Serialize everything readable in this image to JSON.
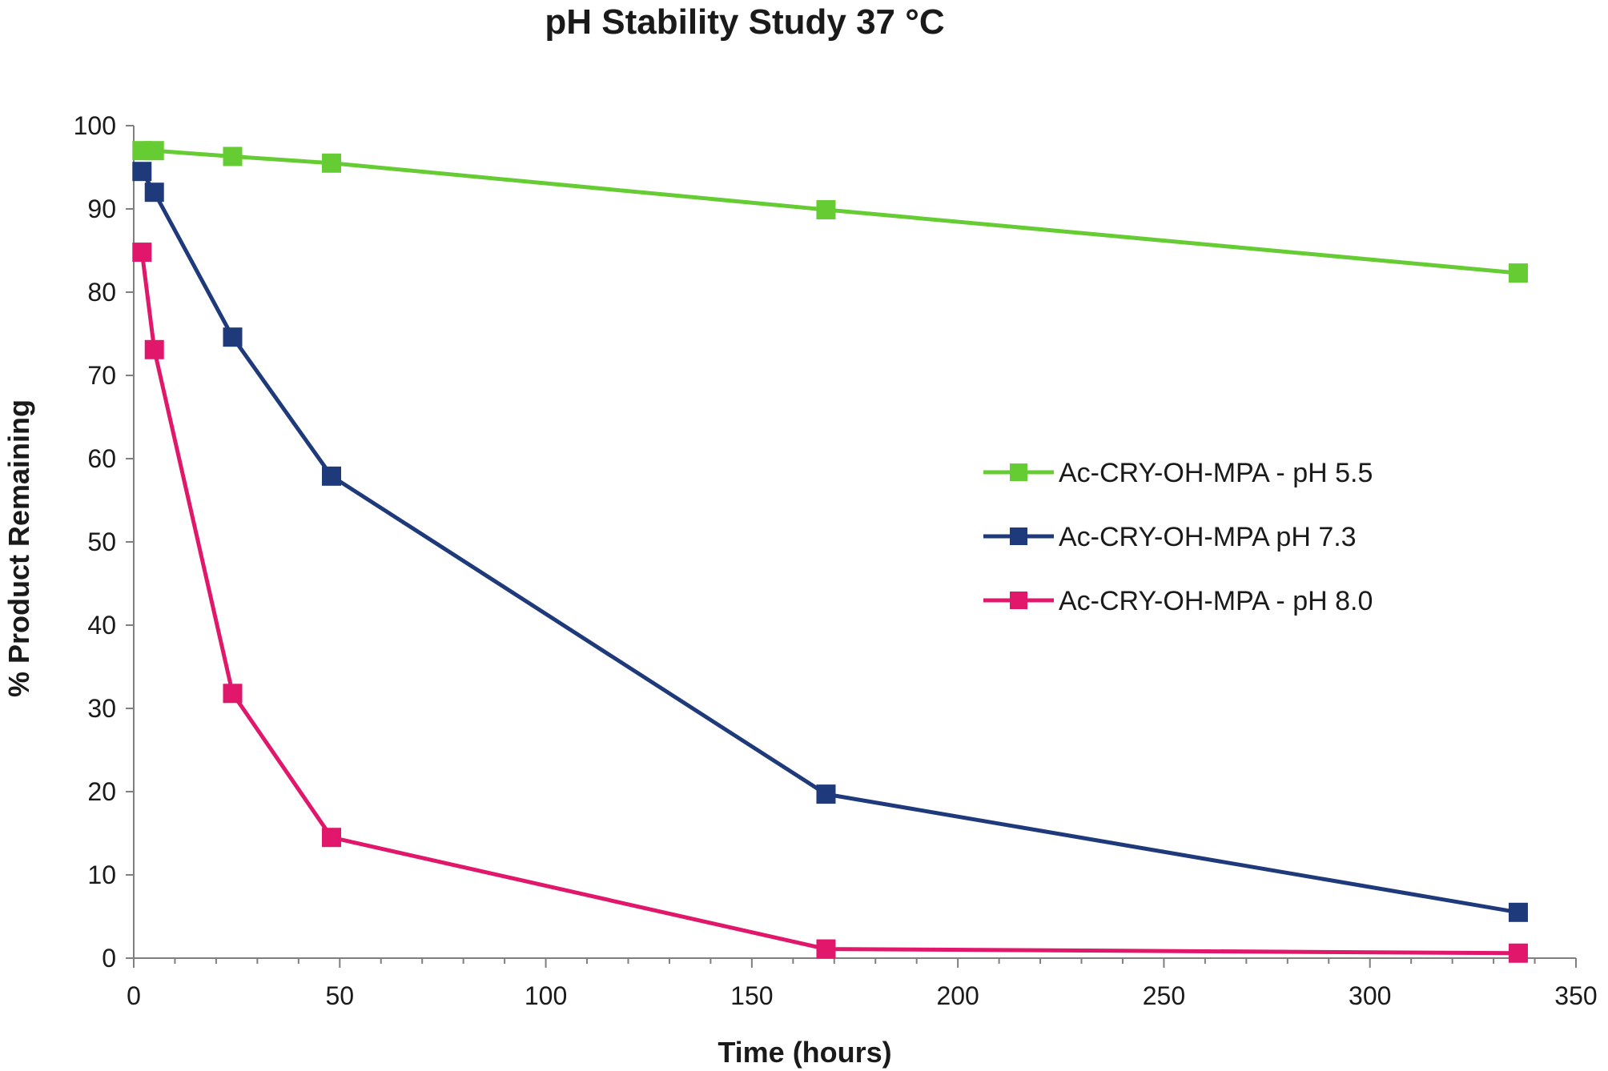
{
  "chart_data": {
    "type": "line",
    "title": "pH Stability Study 37 °C",
    "xlabel": "Time (hours)",
    "ylabel": "% Product Remaining",
    "xlim": [
      0,
      350
    ],
    "ylim": [
      0,
      100
    ],
    "xticks": [
      0,
      50,
      100,
      150,
      200,
      250,
      300,
      350
    ],
    "yticks": [
      0,
      10,
      20,
      30,
      40,
      50,
      60,
      70,
      80,
      90,
      100
    ],
    "grid": false,
    "legend_position": "right",
    "series": [
      {
        "name": "Ac-CRY-OH-MPA - pH 5.5",
        "color": "#66cc33",
        "x": [
          2,
          5,
          24,
          48,
          168,
          336
        ],
        "y": [
          97,
          97,
          96.3,
          95.5,
          89.9,
          82.3
        ]
      },
      {
        "name": "Ac-CRY-OH-MPA pH 7.3",
        "color": "#1f3a7a",
        "x": [
          2,
          5,
          24,
          48,
          168,
          336
        ],
        "y": [
          94.5,
          92,
          74.6,
          57.9,
          19.7,
          5.5
        ]
      },
      {
        "name": "Ac-CRY-OH-MPA - pH 8.0",
        "color": "#e0176b",
        "x": [
          2,
          5,
          24,
          48,
          168,
          336
        ],
        "y": [
          84.8,
          73.1,
          31.8,
          14.5,
          1.1,
          0.6
        ]
      }
    ]
  }
}
